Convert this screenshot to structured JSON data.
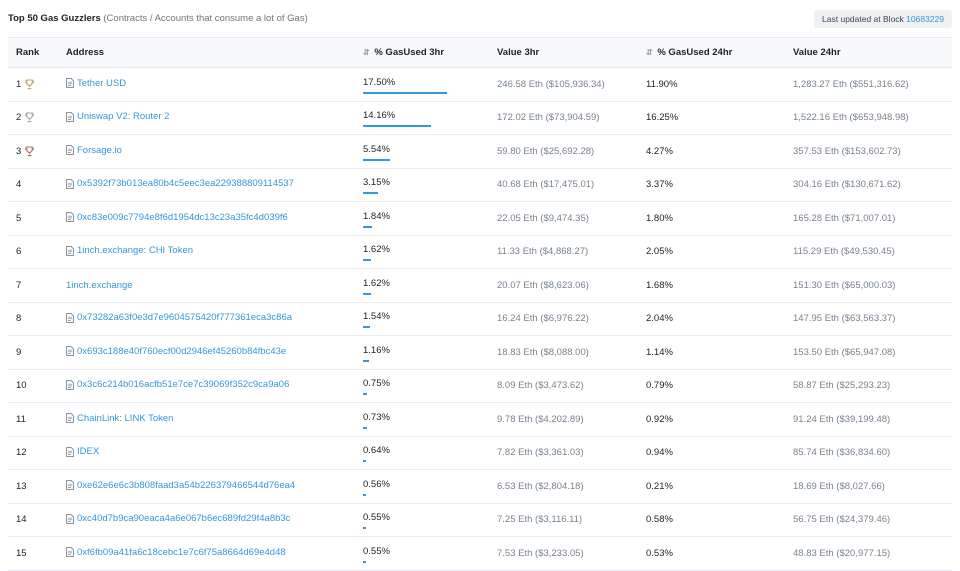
{
  "header": {
    "title_bold": "Top 50 Gas Guzzlers",
    "title_rest": " (Contracts / Accounts that consume a lot of Gas)",
    "block_label": "Last updated at Block ",
    "block_number": "10683229"
  },
  "columns": {
    "rank": "Rank",
    "address": "Address",
    "gas3": "% GasUsed 3hr",
    "val3": "Value 3hr",
    "gas24": "% GasUsed 24hr",
    "val24": "Value 24hr"
  },
  "sort_icon": "sort-icon",
  "trophy_colors": [
    "#b8a36a",
    "#9aa4ad",
    "#a8765a"
  ],
  "rows": [
    {
      "rank": "1",
      "address": "Tether USD",
      "contract": true,
      "gas3": "17.50%",
      "gas3_fraction": 1.0,
      "val3": "246.58 Eth ($105,936.34)",
      "gas24": "11.90%",
      "val24": "1,283.27 Eth ($551,316.62)"
    },
    {
      "rank": "2",
      "address": "Uniswap V2: Router 2",
      "contract": true,
      "gas3": "14.16%",
      "gas3_fraction": 0.81,
      "val3": "172.02 Eth ($73,904.59)",
      "gas24": "16.25%",
      "val24": "1,522.16 Eth ($653,948.98)"
    },
    {
      "rank": "3",
      "address": "Forsage.io",
      "contract": true,
      "gas3": "5.54%",
      "gas3_fraction": 0.32,
      "val3": "59.80 Eth ($25,692.28)",
      "gas24": "4.27%",
      "val24": "357.53 Eth ($153,602.73)"
    },
    {
      "rank": "4",
      "address": "0x5392f73b013ea80b4c5eec3ea229388809114537",
      "contract": true,
      "gas3": "3.15%",
      "gas3_fraction": 0.18,
      "val3": "40.68 Eth ($17,475.01)",
      "gas24": "3.37%",
      "val24": "304.16 Eth ($130,671.62)"
    },
    {
      "rank": "5",
      "address": "0xc83e009c7794e8f6d1954dc13c23a35fc4d039f6",
      "contract": true,
      "gas3": "1.84%",
      "gas3_fraction": 0.105,
      "val3": "22.05 Eth ($9,474.35)",
      "gas24": "1.80%",
      "val24": "165.28 Eth ($71,007.01)"
    },
    {
      "rank": "6",
      "address": "1inch.exchange: CHI Token",
      "contract": true,
      "gas3": "1.62%",
      "gas3_fraction": 0.093,
      "val3": "11.33 Eth ($4,868.27)",
      "gas24": "2.05%",
      "val24": "115.29 Eth ($49,530.45)"
    },
    {
      "rank": "7",
      "address": "1inch.exchange",
      "contract": false,
      "gas3": "1.62%",
      "gas3_fraction": 0.093,
      "val3": "20.07 Eth ($8,623.06)",
      "gas24": "1.68%",
      "val24": "151.30 Eth ($65,000.03)"
    },
    {
      "rank": "8",
      "address": "0x73282a63f0e3d7e9604575420f777361eca3c86a",
      "contract": true,
      "gas3": "1.54%",
      "gas3_fraction": 0.088,
      "val3": "16.24 Eth ($6,976.22)",
      "gas24": "2.04%",
      "val24": "147.95 Eth ($63,563.37)"
    },
    {
      "rank": "9",
      "address": "0x693c188e40f760ecf00d2946ef45260b84fbc43e",
      "contract": true,
      "gas3": "1.16%",
      "gas3_fraction": 0.066,
      "val3": "18.83 Eth ($8,088.00)",
      "gas24": "1.14%",
      "val24": "153.50 Eth ($65,947.08)"
    },
    {
      "rank": "10",
      "address": "0x3c6c214b016acfb51e7ce7c39069f352c9ca9a06",
      "contract": true,
      "gas3": "0.75%",
      "gas3_fraction": 0.043,
      "val3": "8.09 Eth ($3,473.62)",
      "gas24": "0.79%",
      "val24": "58.87 Eth ($25,293.23)"
    },
    {
      "rank": "11",
      "address": "ChainLink: LINK Token",
      "contract": true,
      "gas3": "0.73%",
      "gas3_fraction": 0.042,
      "val3": "9.78 Eth ($4,202.89)",
      "gas24": "0.92%",
      "val24": "91.24 Eth ($39,199.48)"
    },
    {
      "rank": "12",
      "address": "IDEX",
      "contract": true,
      "gas3": "0.64%",
      "gas3_fraction": 0.037,
      "val3": "7.82 Eth ($3,361.03)",
      "gas24": "0.94%",
      "val24": "85.74 Eth ($36,834.60)"
    },
    {
      "rank": "13",
      "address": "0xe62e6e6c3b808faad3a54b226379466544d76ea4",
      "contract": true,
      "gas3": "0.56%",
      "gas3_fraction": 0.032,
      "val3": "6.53 Eth ($2,804.18)",
      "gas24": "0.21%",
      "val24": "18.69 Eth ($8,027.66)"
    },
    {
      "rank": "14",
      "address": "0xc40d7b9ca90eaca4a6e067b6ec689fd29f4a8b3c",
      "contract": true,
      "gas3": "0.55%",
      "gas3_fraction": 0.031,
      "val3": "7.25 Eth ($3,116.11)",
      "gas24": "0.58%",
      "val24": "56.75 Eth ($24,379.46)"
    },
    {
      "rank": "15",
      "address": "0xf6fb09a41fa6c18cebc1e7c6f75a8664d69e4d48",
      "contract": true,
      "gas3": "0.55%",
      "gas3_fraction": 0.031,
      "val3": "7.53 Eth ($3,233.05)",
      "gas24": "0.53%",
      "val24": "48.83 Eth ($20,977.15)"
    }
  ]
}
